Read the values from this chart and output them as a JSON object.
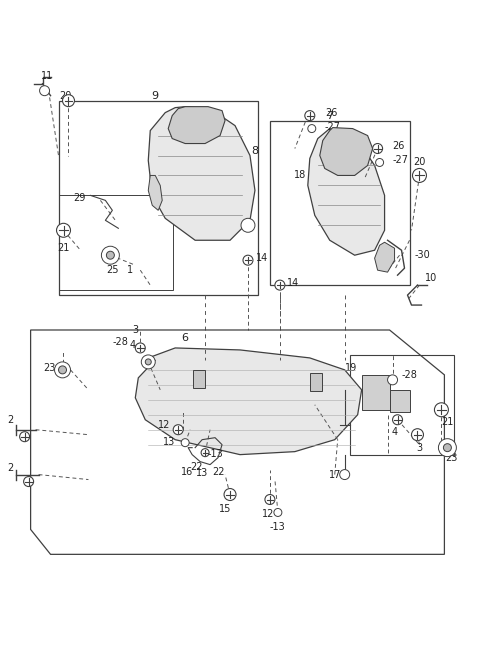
{
  "bg": "#ffffff",
  "fw": 4.8,
  "fh": 6.56,
  "dpi": 100,
  "line_color": "#404040",
  "dash_color": "#555555",
  "seat_fill": "#e8e8e8",
  "seat_line": "#404040",
  "box_color": "#444444"
}
